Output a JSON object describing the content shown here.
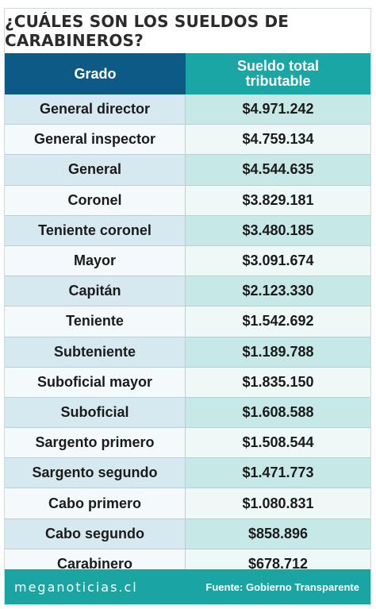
{
  "title": "¿CUÁLES SON LOS SUELDOS DE CARABINEROS?",
  "chart_data": {
    "type": "table",
    "columns": [
      "Grado",
      "Sueldo total tributable"
    ],
    "rows": [
      [
        "General director",
        "$4.971.242"
      ],
      [
        "General inspector",
        "$4.759.134"
      ],
      [
        "General",
        "$4.544.635"
      ],
      [
        "Coronel",
        "$3.829.181"
      ],
      [
        "Teniente coronel",
        "$3.480.185"
      ],
      [
        "Mayor",
        "$3.091.674"
      ],
      [
        "Capitán",
        "$2.123.330"
      ],
      [
        "Teniente",
        "$1.542.692"
      ],
      [
        "Subteniente",
        "$1.189.788"
      ],
      [
        "Suboficial mayor",
        "$1.835.150"
      ],
      [
        "Suboficial",
        "$1.608.588"
      ],
      [
        "Sargento primero",
        "$1.508.544"
      ],
      [
        "Sargento segundo",
        "$1.471.773"
      ],
      [
        "Cabo primero",
        "$1.080.831"
      ],
      [
        "Cabo segundo",
        "$858.896"
      ],
      [
        "Carabinero",
        "$678.712"
      ]
    ]
  },
  "header": {
    "grado": "Grado",
    "sueldo_line1": "Sueldo total",
    "sueldo_line2": "tributable"
  },
  "footer": {
    "brand": "meganoticias.cl",
    "source": "Fuente: Gobierno Transparente"
  },
  "colors": {
    "header_left": "#0e5a86",
    "header_right": "#19a6a4",
    "footer": "#1aa5a3"
  }
}
